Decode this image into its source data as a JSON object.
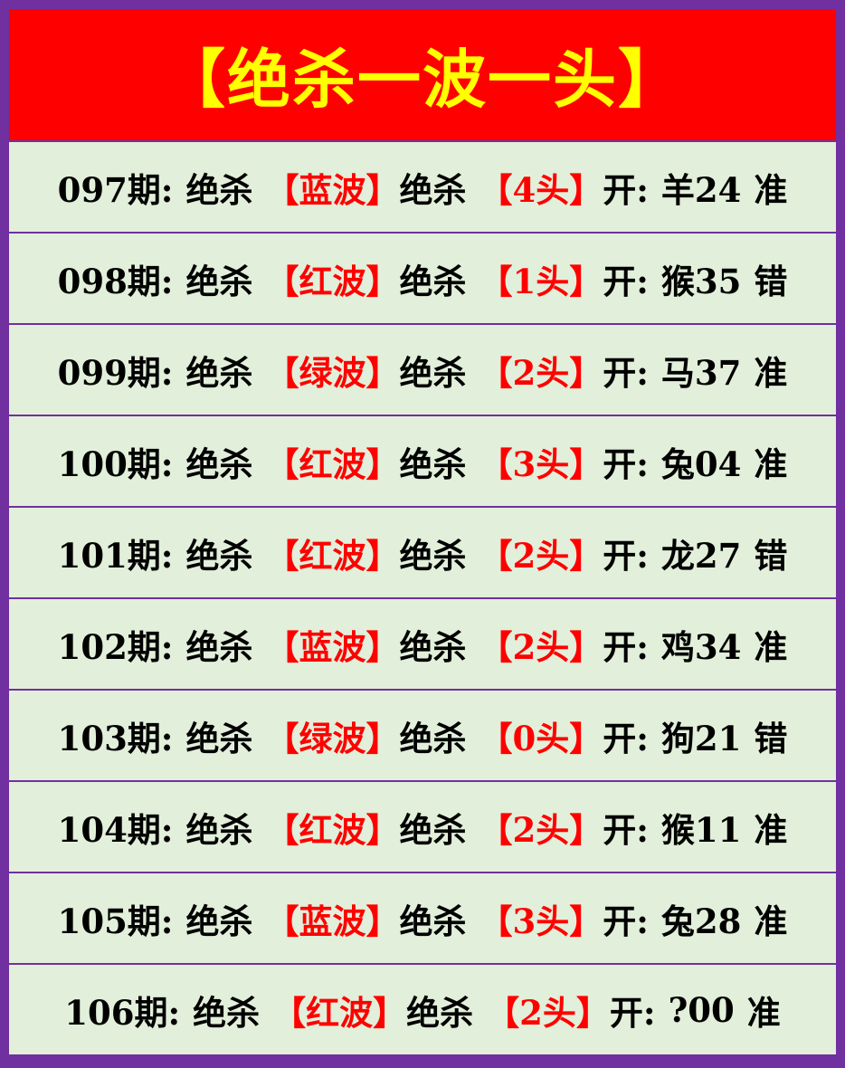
{
  "title": "【绝杀一波一头】",
  "colors": {
    "border": "#7030A0",
    "header_bg": "#FF0000",
    "title": "#FFFF00",
    "row_bg": "#E2EFDA",
    "highlight": "#FF0000"
  },
  "rows": [
    {
      "period": "097期:",
      "kill1": "绝杀",
      "wave": "【蓝波】",
      "kill2": "绝杀",
      "head": "【4头】",
      "open": "开:",
      "result": "羊24",
      "verdict": "准"
    },
    {
      "period": "098期:",
      "kill1": "绝杀",
      "wave": "【红波】",
      "kill2": "绝杀",
      "head": "【1头】",
      "open": "开:",
      "result": "猴35",
      "verdict": "错"
    },
    {
      "period": "099期:",
      "kill1": "绝杀",
      "wave": "【绿波】",
      "kill2": "绝杀",
      "head": "【2头】",
      "open": "开:",
      "result": "马37",
      "verdict": "准"
    },
    {
      "period": "100期:",
      "kill1": "绝杀",
      "wave": "【红波】",
      "kill2": "绝杀",
      "head": "【3头】",
      "open": "开:",
      "result": "兔04",
      "verdict": "准"
    },
    {
      "period": "101期:",
      "kill1": "绝杀",
      "wave": "【红波】",
      "kill2": "绝杀",
      "head": "【2头】",
      "open": "开:",
      "result": "龙27",
      "verdict": "错"
    },
    {
      "period": "102期:",
      "kill1": "绝杀",
      "wave": "【蓝波】",
      "kill2": "绝杀",
      "head": "【2头】",
      "open": "开:",
      "result": "鸡34",
      "verdict": "准"
    },
    {
      "period": "103期:",
      "kill1": "绝杀",
      "wave": "【绿波】",
      "kill2": "绝杀",
      "head": "【0头】",
      "open": "开:",
      "result": "狗21",
      "verdict": "错"
    },
    {
      "period": "104期:",
      "kill1": "绝杀",
      "wave": "【红波】",
      "kill2": "绝杀",
      "head": "【2头】",
      "open": "开:",
      "result": "猴11",
      "verdict": "准"
    },
    {
      "period": "105期:",
      "kill1": "绝杀",
      "wave": "【蓝波】",
      "kill2": "绝杀",
      "head": "【3头】",
      "open": "开:",
      "result": "兔28",
      "verdict": "准"
    },
    {
      "period": "106期:",
      "kill1": "绝杀",
      "wave": "【红波】",
      "kill2": "绝杀",
      "head": "【2头】",
      "open": "开:",
      "result": "?00",
      "verdict": "准"
    }
  ]
}
